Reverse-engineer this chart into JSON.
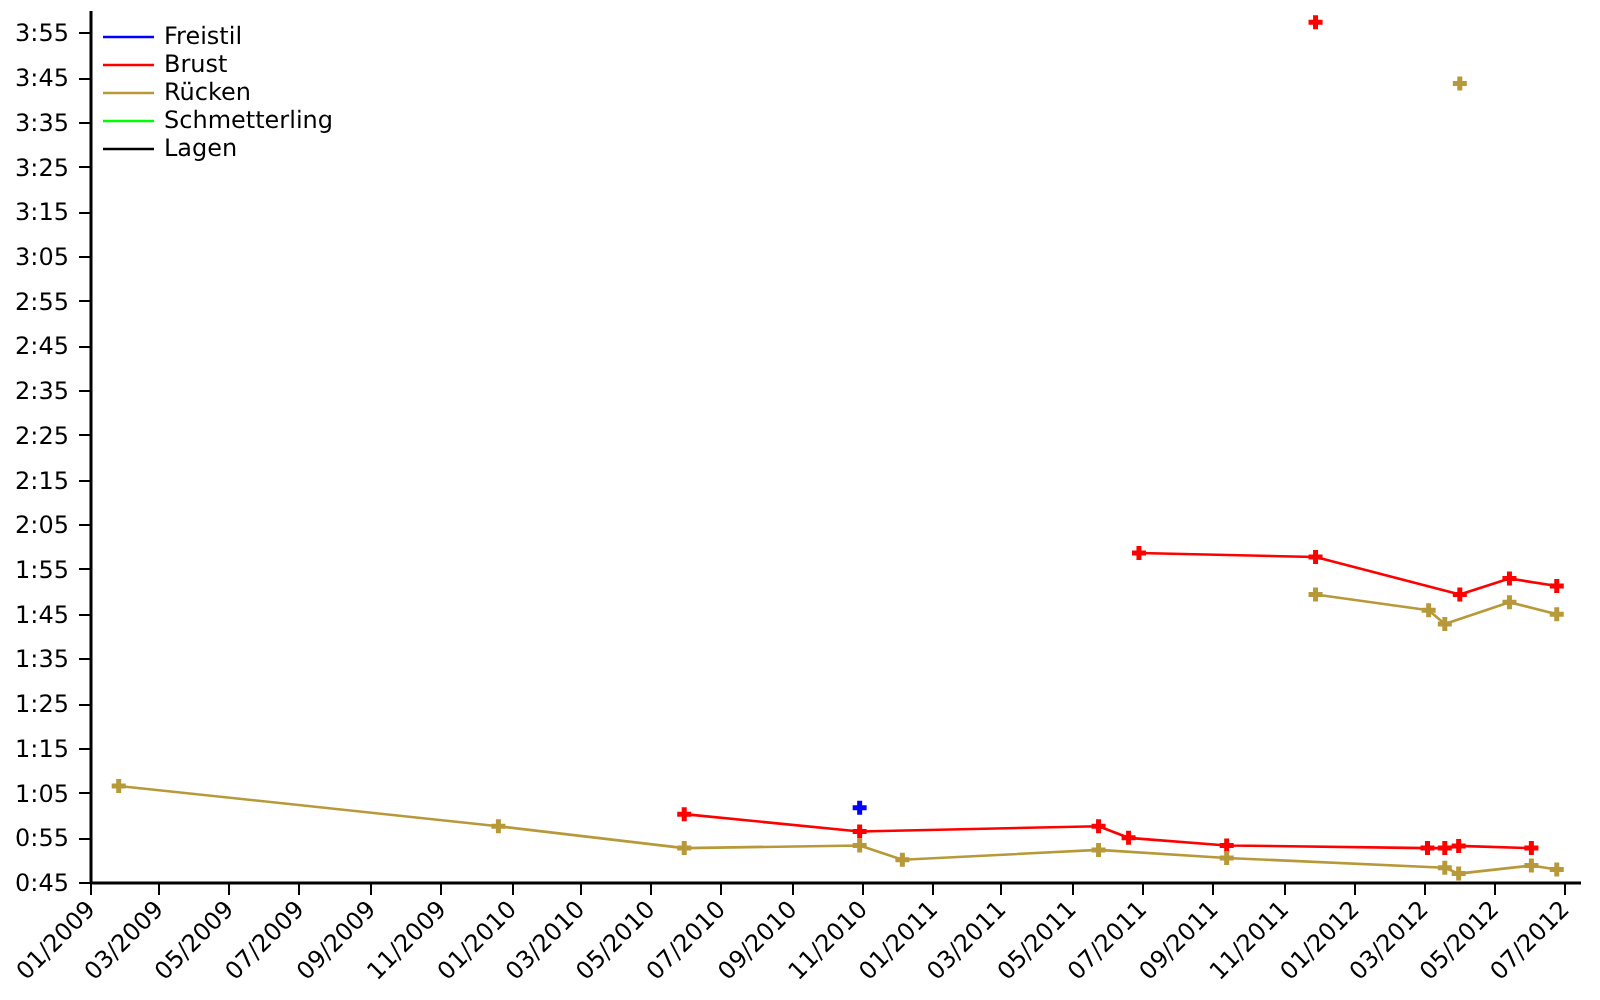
{
  "chart_data": {
    "type": "line",
    "marker": "cross",
    "grid": false,
    "legend": "top left",
    "xlim": [
      "2009-01-01",
      "2012-07-15"
    ],
    "ylim": [
      45,
      240
    ],
    "xticks": [
      {
        "value": "2009-01-01",
        "label": "01/2009"
      },
      {
        "value": "2009-03-01",
        "label": "03/2009"
      },
      {
        "value": "2009-05-01",
        "label": "05/2009"
      },
      {
        "value": "2009-07-01",
        "label": "07/2009"
      },
      {
        "value": "2009-09-01",
        "label": "09/2009"
      },
      {
        "value": "2009-11-01",
        "label": "11/2009"
      },
      {
        "value": "2010-01-01",
        "label": "01/2010"
      },
      {
        "value": "2010-03-01",
        "label": "03/2010"
      },
      {
        "value": "2010-05-01",
        "label": "05/2010"
      },
      {
        "value": "2010-07-01",
        "label": "07/2010"
      },
      {
        "value": "2010-09-01",
        "label": "09/2010"
      },
      {
        "value": "2010-11-01",
        "label": "11/2010"
      },
      {
        "value": "2011-01-01",
        "label": "01/2011"
      },
      {
        "value": "2011-03-01",
        "label": "03/2011"
      },
      {
        "value": "2011-05-01",
        "label": "05/2011"
      },
      {
        "value": "2011-07-01",
        "label": "07/2011"
      },
      {
        "value": "2011-09-01",
        "label": "09/2011"
      },
      {
        "value": "2011-11-01",
        "label": "11/2011"
      },
      {
        "value": "2012-01-01",
        "label": "01/2012"
      },
      {
        "value": "2012-03-01",
        "label": "03/2012"
      },
      {
        "value": "2012-05-01",
        "label": "05/2012"
      },
      {
        "value": "2012-07-01",
        "label": "07/2012"
      }
    ],
    "yticks": [
      {
        "value": 45,
        "label": "0:45"
      },
      {
        "value": 55,
        "label": "0:55"
      },
      {
        "value": 65,
        "label": "1:05"
      },
      {
        "value": 75,
        "label": "1:15"
      },
      {
        "value": 85,
        "label": "1:25"
      },
      {
        "value": 95,
        "label": "1:35"
      },
      {
        "value": 105,
        "label": "1:45"
      },
      {
        "value": 115,
        "label": "1:55"
      },
      {
        "value": 125,
        "label": "2:05"
      },
      {
        "value": 135,
        "label": "2:15"
      },
      {
        "value": 145,
        "label": "2:25"
      },
      {
        "value": 155,
        "label": "2:35"
      },
      {
        "value": 165,
        "label": "2:45"
      },
      {
        "value": 175,
        "label": "2:55"
      },
      {
        "value": 185,
        "label": "3:05"
      },
      {
        "value": 195,
        "label": "3:15"
      },
      {
        "value": 205,
        "label": "3:25"
      },
      {
        "value": 215,
        "label": "3:35"
      },
      {
        "value": 225,
        "label": "3:45"
      },
      {
        "value": 235,
        "label": "3:55"
      }
    ],
    "series": [
      {
        "name": "Freistil",
        "color": "#0000ff",
        "x": [
          "2010-10-29"
        ],
        "values": [
          61.8
        ]
      },
      {
        "name": "Brust",
        "color": "#ff0000",
        "x": [
          "2010-05-30",
          "2010-10-29",
          "2011-05-24",
          "2011-06-19",
          "2011-09-12",
          "2012-03-04",
          "2012-03-19",
          "2012-03-31",
          "2012-06-02"
        ],
        "values": [
          60.4,
          56.5,
          57.7,
          55.1,
          53.4,
          52.8,
          52.8,
          53.3,
          52.8
        ]
      },
      {
        "color": "#ff0000",
        "x": [
          "2011-06-28",
          "2011-11-28",
          "2012-04-01",
          "2012-05-14",
          "2012-06-24"
        ],
        "values": [
          118.8,
          117.9,
          109.5,
          113.1,
          111.4
        ]
      },
      {
        "color": "#ff0000",
        "x": [
          "2011-11-28"
        ],
        "values": [
          237.5
        ]
      },
      {
        "name": "Rücken",
        "color": "#b8993a",
        "x": [
          "2009-01-25",
          "2009-12-20",
          "2010-05-30",
          "2010-10-29",
          "2010-12-05",
          "2011-05-24",
          "2011-09-12",
          "2012-03-19",
          "2012-03-31",
          "2012-06-02",
          "2012-06-24"
        ],
        "values": [
          66.7,
          57.7,
          52.8,
          53.4,
          50.2,
          52.4,
          50.6,
          48.4,
          47.1,
          48.9,
          48.0
        ]
      },
      {
        "color": "#b8993a",
        "x": [
          "2011-11-28",
          "2012-03-05",
          "2012-03-19",
          "2012-05-14",
          "2012-06-24"
        ],
        "values": [
          109.5,
          106.0,
          102.9,
          107.8,
          105.1
        ]
      },
      {
        "color": "#b8993a",
        "x": [
          "2012-04-01"
        ],
        "values": [
          223.8
        ]
      },
      {
        "name": "Schmetterling",
        "color": "#00ff00"
      },
      {
        "name": "Lagen",
        "color": "#000000"
      }
    ]
  }
}
